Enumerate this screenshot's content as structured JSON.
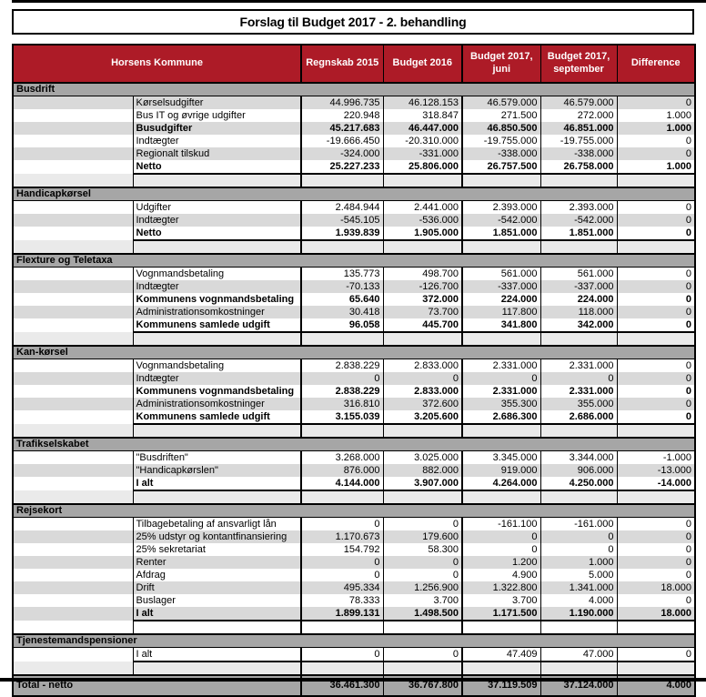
{
  "page_title": "Forslag til Budget 2017 - 2. behandling",
  "colors": {
    "header_bg": "#AD1B27",
    "header_text": "#FFFFFF",
    "section_bg": "#A6A6A6",
    "stripe_gray": "#D9D9D9",
    "spacer_gray": "#EAEAEA",
    "total_bg": "#A6A6A6"
  },
  "table": {
    "header": {
      "label": "Horsens Kommune",
      "columns": [
        "Regnskab 2015",
        "Budget 2016",
        "Budget 2017, juni",
        "Budget 2017, september",
        "Difference"
      ]
    },
    "sections": [
      {
        "name": "Busdrift",
        "spacer_shade": "gray",
        "rows": [
          {
            "label": "Kørselsudgifter",
            "bold": false,
            "last": false,
            "shade": "gray",
            "values": [
              "44.996.735",
              "46.128.153",
              "46.579.000",
              "46.579.000",
              "0"
            ]
          },
          {
            "label": "Bus IT og øvrige udgifter",
            "bold": false,
            "last": false,
            "shade": "white",
            "values": [
              "220.948",
              "318.847",
              "271.500",
              "272.000",
              "1.000"
            ]
          },
          {
            "label": "Busudgifter",
            "bold": true,
            "last": false,
            "shade": "gray",
            "values": [
              "45.217.683",
              "46.447.000",
              "46.850.500",
              "46.851.000",
              "1.000"
            ]
          },
          {
            "label": "Indtægter",
            "bold": false,
            "last": false,
            "shade": "white",
            "values": [
              "-19.666.450",
              "-20.310.000",
              "-19.755.000",
              "-19.755.000",
              "0"
            ]
          },
          {
            "label": "Regionalt tilskud",
            "bold": false,
            "last": false,
            "shade": "gray",
            "values": [
              "-324.000",
              "-331.000",
              "-338.000",
              "-338.000",
              "0"
            ]
          },
          {
            "label": "Netto",
            "bold": true,
            "last": true,
            "shade": "white",
            "values": [
              "25.227.233",
              "25.806.000",
              "26.757.500",
              "26.758.000",
              "1.000"
            ]
          }
        ]
      },
      {
        "name": "Handicapkørsel",
        "spacer_shade": "gray",
        "rows": [
          {
            "label": "Udgifter",
            "bold": false,
            "last": false,
            "shade": "white",
            "values": [
              "2.484.944",
              "2.441.000",
              "2.393.000",
              "2.393.000",
              "0"
            ]
          },
          {
            "label": "Indtægter",
            "bold": false,
            "last": false,
            "shade": "gray",
            "values": [
              "-545.105",
              "-536.000",
              "-542.000",
              "-542.000",
              "0"
            ]
          },
          {
            "label": "Netto",
            "bold": true,
            "last": true,
            "shade": "white",
            "values": [
              "1.939.839",
              "1.905.000",
              "1.851.000",
              "1.851.000",
              "0"
            ]
          }
        ]
      },
      {
        "name": "Flexture og Teletaxa",
        "spacer_shade": "gray",
        "rows": [
          {
            "label": "Vognmandsbetaling",
            "bold": false,
            "last": false,
            "shade": "white",
            "values": [
              "135.773",
              "498.700",
              "561.000",
              "561.000",
              "0"
            ]
          },
          {
            "label": "Indtægter",
            "bold": false,
            "last": false,
            "shade": "gray",
            "values": [
              "-70.133",
              "-126.700",
              "-337.000",
              "-337.000",
              "0"
            ]
          },
          {
            "label": "Kommunens vognmandsbetaling",
            "bold": true,
            "last": false,
            "shade": "white",
            "values": [
              "65.640",
              "372.000",
              "224.000",
              "224.000",
              "0"
            ]
          },
          {
            "label": "Administrationsomkostninger",
            "bold": false,
            "last": false,
            "shade": "gray",
            "values": [
              "30.418",
              "73.700",
              "117.800",
              "118.000",
              "0"
            ]
          },
          {
            "label": "Kommunens samlede udgift",
            "bold": true,
            "last": true,
            "shade": "white",
            "values": [
              "96.058",
              "445.700",
              "341.800",
              "342.000",
              "0"
            ]
          }
        ]
      },
      {
        "name": "Kan-kørsel",
        "spacer_shade": "gray",
        "rows": [
          {
            "label": "Vognmandsbetaling",
            "bold": false,
            "last": false,
            "shade": "white",
            "values": [
              "2.838.229",
              "2.833.000",
              "2.331.000",
              "2.331.000",
              "0"
            ]
          },
          {
            "label": "Indtægter",
            "bold": false,
            "last": false,
            "shade": "gray",
            "values": [
              "0",
              "0",
              "0",
              "0",
              "0"
            ]
          },
          {
            "label": "Kommunens vognmandsbetaling",
            "bold": true,
            "last": false,
            "shade": "white",
            "values": [
              "2.838.229",
              "2.833.000",
              "2.331.000",
              "2.331.000",
              "0"
            ]
          },
          {
            "label": "Administrationsomkostninger",
            "bold": false,
            "last": false,
            "shade": "gray",
            "values": [
              "316.810",
              "372.600",
              "355.300",
              "355.000",
              "0"
            ]
          },
          {
            "label": "Kommunens samlede udgift",
            "bold": true,
            "last": true,
            "shade": "white",
            "values": [
              "3.155.039",
              "3.205.600",
              "2.686.300",
              "2.686.000",
              "0"
            ]
          }
        ]
      },
      {
        "name": "Trafikselskabet",
        "spacer_shade": "gray",
        "rows": [
          {
            "label": "\"Busdriften\"",
            "bold": false,
            "last": false,
            "shade": "white",
            "values": [
              "3.268.000",
              "3.025.000",
              "3.345.000",
              "3.344.000",
              "-1.000"
            ]
          },
          {
            "label": "\"Handicapkørslen\"",
            "bold": false,
            "last": false,
            "shade": "gray",
            "values": [
              "876.000",
              "882.000",
              "919.000",
              "906.000",
              "-13.000"
            ]
          },
          {
            "label": "I alt",
            "bold": true,
            "last": true,
            "shade": "white",
            "values": [
              "4.144.000",
              "3.907.000",
              "4.264.000",
              "4.250.000",
              "-14.000"
            ]
          }
        ]
      },
      {
        "name": "Rejsekort",
        "spacer_shade": "white",
        "rows": [
          {
            "label": "Tilbagebetaling af ansvarligt lån",
            "bold": false,
            "last": false,
            "shade": "white",
            "values": [
              "0",
              "0",
              "-161.100",
              "-161.000",
              "0"
            ]
          },
          {
            "label": "25% udstyr og kontantfinansiering",
            "bold": false,
            "last": false,
            "shade": "gray",
            "values": [
              "1.170.673",
              "179.600",
              "0",
              "0",
              "0"
            ]
          },
          {
            "label": "25% sekretariat",
            "bold": false,
            "last": false,
            "shade": "white",
            "values": [
              "154.792",
              "58.300",
              "0",
              "0",
              "0"
            ]
          },
          {
            "label": "Renter",
            "bold": false,
            "last": false,
            "shade": "gray",
            "values": [
              "0",
              "0",
              "1.200",
              "1.000",
              "0"
            ]
          },
          {
            "label": "Afdrag",
            "bold": false,
            "last": false,
            "shade": "white",
            "values": [
              "0",
              "0",
              "4.900",
              "5.000",
              "0"
            ]
          },
          {
            "label": "Drift",
            "bold": false,
            "last": false,
            "shade": "gray",
            "values": [
              "495.334",
              "1.256.900",
              "1.322.800",
              "1.341.000",
              "18.000"
            ]
          },
          {
            "label": "Buslager",
            "bold": false,
            "last": false,
            "shade": "white",
            "values": [
              "78.333",
              "3.700",
              "3.700",
              "4.000",
              "0"
            ]
          },
          {
            "label": "I alt",
            "bold": true,
            "last": true,
            "shade": "gray",
            "values": [
              "1.899.131",
              "1.498.500",
              "1.171.500",
              "1.190.000",
              "18.000"
            ]
          }
        ]
      },
      {
        "name": "Tjenestemandspensioner",
        "spacer_shade": "gray",
        "rows": [
          {
            "label": "I alt",
            "bold": false,
            "last": true,
            "shade": "white",
            "values": [
              "0",
              "0",
              "47.409",
              "47.000",
              "0"
            ]
          }
        ]
      }
    ],
    "total_row": {
      "label": "Total - netto",
      "values": [
        "36.461.300",
        "36.767.800",
        "37.119.509",
        "37.124.000",
        "4.000"
      ]
    }
  }
}
